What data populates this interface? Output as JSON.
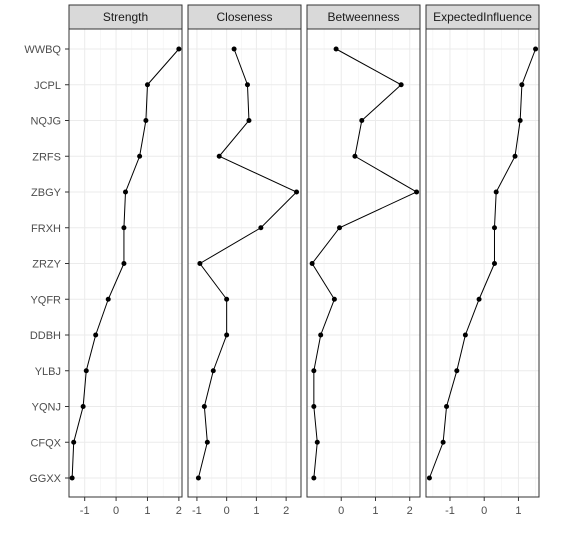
{
  "chart_data": {
    "type": "line",
    "layout": "faceted",
    "grid": true,
    "categories": [
      "WWBQ",
      "JCPL",
      "NQJG",
      "ZRFS",
      "ZBGY",
      "FRXH",
      "ZRZY",
      "YQFR",
      "DDBH",
      "YLBJ",
      "YQNJ",
      "CFQX",
      "GGXX"
    ],
    "series": [
      {
        "name": "Strength",
        "xlim": [
          -1.5,
          2.1
        ],
        "x_ticks": [
          -1,
          0,
          1,
          2
        ],
        "x_tick_labels": [
          "-1",
          "0",
          "1",
          "2"
        ],
        "values": [
          2.0,
          1.0,
          0.95,
          0.75,
          0.3,
          0.25,
          0.25,
          -0.25,
          -0.65,
          -0.95,
          -1.05,
          -1.35,
          -1.4
        ]
      },
      {
        "name": "Closeness",
        "xlim": [
          -1.3,
          2.5
        ],
        "x_ticks": [
          -1,
          0,
          1,
          2
        ],
        "x_tick_labels": [
          "-1",
          "0",
          "1",
          "2"
        ],
        "values": [
          0.25,
          0.7,
          0.75,
          -0.25,
          2.35,
          1.15,
          -0.9,
          0.0,
          0.0,
          -0.45,
          -0.75,
          -0.65,
          -0.95
        ]
      },
      {
        "name": "Betweenness",
        "xlim": [
          -1.0,
          2.3
        ],
        "x_ticks": [
          0,
          1,
          2
        ],
        "x_tick_labels": [
          "0",
          "1",
          "2"
        ],
        "values": [
          -0.15,
          1.75,
          0.6,
          0.4,
          2.2,
          -0.05,
          -0.85,
          -0.2,
          -0.6,
          -0.8,
          -0.8,
          -0.7,
          -0.8
        ]
      },
      {
        "name": "ExpectedInfluence",
        "xlim": [
          -1.7,
          1.6
        ],
        "x_ticks": [
          -1,
          0,
          1
        ],
        "x_tick_labels": [
          "-1",
          "0",
          "1"
        ],
        "values": [
          1.5,
          1.1,
          1.05,
          0.9,
          0.35,
          0.3,
          0.3,
          -0.15,
          -0.55,
          -0.8,
          -1.1,
          -1.2,
          -1.6
        ]
      }
    ]
  }
}
